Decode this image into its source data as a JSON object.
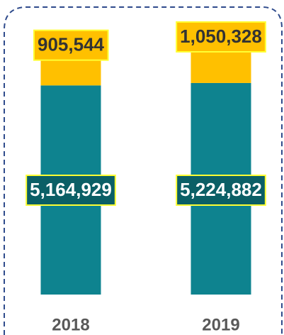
{
  "chart_data": {
    "type": "stacked_bar",
    "categories": [
      "2018",
      "2019"
    ],
    "series": [
      {
        "color": "#0e838f",
        "label_fill": "#0b5f66",
        "label_text": "#ffffff",
        "values": [
          5164929,
          5224882
        ],
        "value_labels": [
          "5,164,929",
          "5,224,882"
        ]
      },
      {
        "color": "#ffc000",
        "label_fill": "#ffc000",
        "label_text": "#333333",
        "values": [
          905544,
          1050328
        ],
        "value_labels": [
          "905,544",
          "1,050,328"
        ]
      }
    ]
  }
}
